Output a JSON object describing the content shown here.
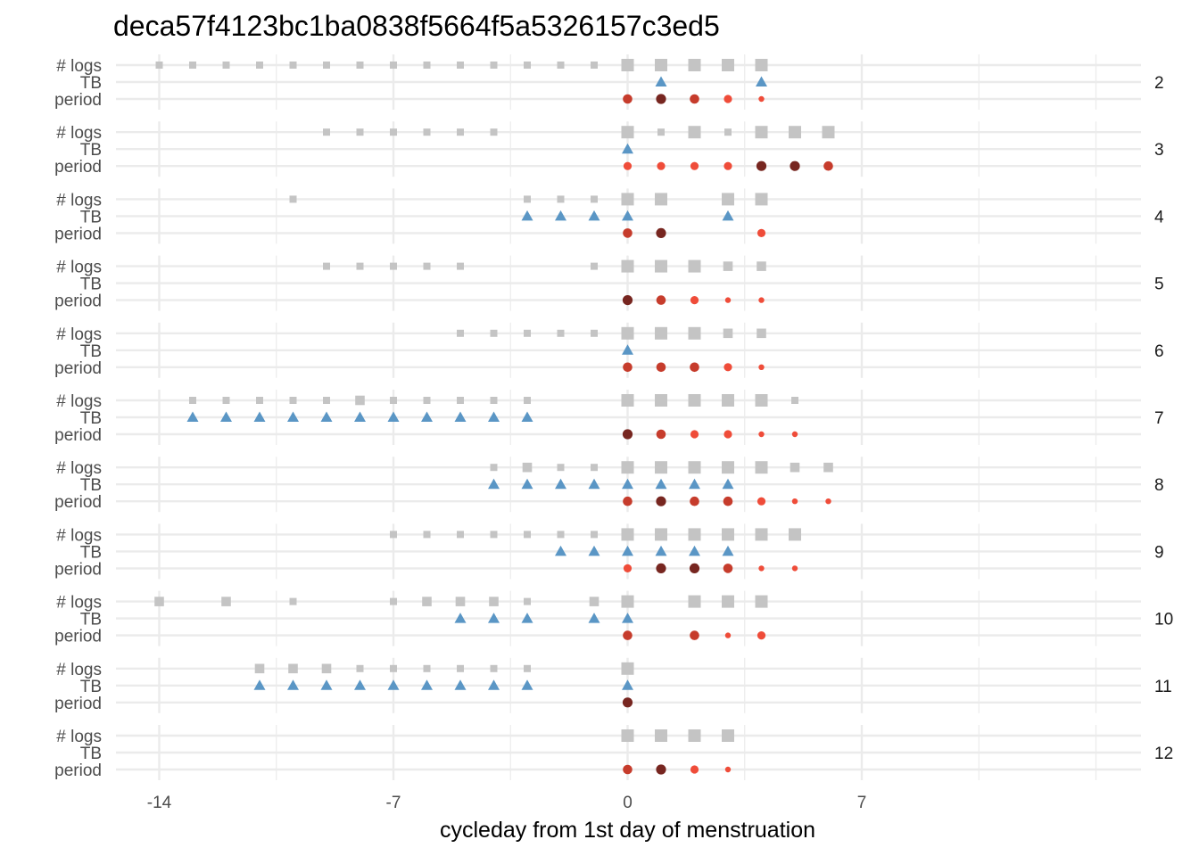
{
  "chart_data": {
    "type": "scatter",
    "title": "deca57f4123bc1ba0838f5664f5a5326157c3ed5",
    "xlabel": "cycleday from 1st day of menstruation",
    "x_ticks": [
      -14,
      -7,
      0,
      7
    ],
    "xlim": [
      -15.3,
      15.3
    ],
    "row_labels": [
      "# logs",
      "TB",
      "period"
    ],
    "grid": true,
    "colors": {
      "logs": "#c4c4c4",
      "tb": "#5a96c5",
      "period_light": "#ef4c39",
      "period_medium": "#c63c2c",
      "period_heavy": "#772620",
      "grid": "#ebebeb"
    },
    "panels": [
      {
        "label": "2",
        "logs": [
          [
            -14,
            1
          ],
          [
            -13,
            1
          ],
          [
            -12,
            1
          ],
          [
            -11,
            1
          ],
          [
            -10,
            1
          ],
          [
            -9,
            1
          ],
          [
            -8,
            1
          ],
          [
            -7,
            1
          ],
          [
            -6,
            1
          ],
          [
            -5,
            1
          ],
          [
            -4,
            1
          ],
          [
            -3,
            1
          ],
          [
            -2,
            1
          ],
          [
            -1,
            1
          ],
          [
            0,
            2
          ],
          [
            1,
            2
          ],
          [
            2,
            2
          ],
          [
            3,
            2
          ],
          [
            4,
            2
          ]
        ],
        "tb": [
          1,
          4
        ],
        "period": [
          [
            0,
            "medium"
          ],
          [
            1,
            "heavy"
          ],
          [
            2,
            "medium"
          ],
          [
            3,
            "light"
          ],
          [
            4,
            "spotting"
          ]
        ]
      },
      {
        "label": "3",
        "logs": [
          [
            -9,
            1
          ],
          [
            -8,
            1
          ],
          [
            -7,
            1
          ],
          [
            -6,
            1
          ],
          [
            -5,
            1
          ],
          [
            -4,
            1
          ],
          [
            0,
            2
          ],
          [
            1,
            1
          ],
          [
            2,
            2
          ],
          [
            3,
            1
          ],
          [
            4,
            2
          ],
          [
            5,
            2
          ],
          [
            6,
            2
          ]
        ],
        "tb": [
          0
        ],
        "period": [
          [
            0,
            "light"
          ],
          [
            1,
            "light"
          ],
          [
            2,
            "light"
          ],
          [
            3,
            "light"
          ],
          [
            4,
            "heavy"
          ],
          [
            5,
            "heavy"
          ],
          [
            6,
            "medium"
          ]
        ]
      },
      {
        "label": "4",
        "logs": [
          [
            -10,
            1
          ],
          [
            -3,
            1
          ],
          [
            -2,
            1
          ],
          [
            -1,
            1
          ],
          [
            0,
            2
          ],
          [
            1,
            2
          ],
          [
            3,
            2
          ],
          [
            4,
            2
          ]
        ],
        "tb": [
          -3,
          -2,
          -1,
          0,
          3
        ],
        "period": [
          [
            0,
            "medium"
          ],
          [
            1,
            "heavy"
          ],
          [
            4,
            "light"
          ]
        ]
      },
      {
        "label": "5",
        "logs": [
          [
            -9,
            1
          ],
          [
            -8,
            1
          ],
          [
            -7,
            1
          ],
          [
            -6,
            1
          ],
          [
            -5,
            1
          ],
          [
            -1,
            1
          ],
          [
            0,
            2
          ],
          [
            1,
            2
          ],
          [
            2,
            2
          ],
          [
            3,
            1.5
          ],
          [
            4,
            1.5
          ]
        ],
        "tb": [],
        "period": [
          [
            0,
            "heavy"
          ],
          [
            1,
            "medium"
          ],
          [
            2,
            "light"
          ],
          [
            3,
            "spotting"
          ],
          [
            4,
            "spotting"
          ]
        ]
      },
      {
        "label": "6",
        "logs": [
          [
            -5,
            1
          ],
          [
            -4,
            1
          ],
          [
            -3,
            1
          ],
          [
            -2,
            1
          ],
          [
            -1,
            1
          ],
          [
            0,
            2
          ],
          [
            1,
            2
          ],
          [
            2,
            2
          ],
          [
            3,
            1.5
          ],
          [
            4,
            1.5
          ]
        ],
        "tb": [
          0
        ],
        "period": [
          [
            0,
            "medium"
          ],
          [
            1,
            "medium"
          ],
          [
            2,
            "medium"
          ],
          [
            3,
            "light"
          ],
          [
            4,
            "spotting"
          ]
        ]
      },
      {
        "label": "7",
        "logs": [
          [
            -13,
            1
          ],
          [
            -12,
            1
          ],
          [
            -11,
            1
          ],
          [
            -10,
            1
          ],
          [
            -9,
            1
          ],
          [
            -8,
            1.5
          ],
          [
            -7,
            1
          ],
          [
            -6,
            1
          ],
          [
            -5,
            1
          ],
          [
            -4,
            1
          ],
          [
            -3,
            1
          ],
          [
            0,
            2
          ],
          [
            1,
            2
          ],
          [
            2,
            2
          ],
          [
            3,
            2
          ],
          [
            4,
            2
          ],
          [
            5,
            1
          ]
        ],
        "tb": [
          -13,
          -12,
          -11,
          -10,
          -9,
          -8,
          -7,
          -6,
          -5,
          -4,
          -3
        ],
        "period": [
          [
            0,
            "heavy"
          ],
          [
            1,
            "medium"
          ],
          [
            2,
            "light"
          ],
          [
            3,
            "light"
          ],
          [
            4,
            "spotting"
          ],
          [
            5,
            "spotting"
          ]
        ]
      },
      {
        "label": "8",
        "logs": [
          [
            -4,
            1
          ],
          [
            -3,
            1.5
          ],
          [
            -2,
            1
          ],
          [
            -1,
            1
          ],
          [
            0,
            2
          ],
          [
            1,
            2
          ],
          [
            2,
            2
          ],
          [
            3,
            2
          ],
          [
            4,
            2
          ],
          [
            5,
            1.5
          ],
          [
            6,
            1.5
          ]
        ],
        "tb": [
          -4,
          -3,
          -2,
          -1,
          0,
          1,
          2,
          3
        ],
        "period": [
          [
            0,
            "medium"
          ],
          [
            1,
            "heavy"
          ],
          [
            2,
            "medium"
          ],
          [
            3,
            "medium"
          ],
          [
            4,
            "light"
          ],
          [
            5,
            "spotting"
          ],
          [
            6,
            "spotting"
          ]
        ]
      },
      {
        "label": "9",
        "logs": [
          [
            -7,
            1
          ],
          [
            -6,
            1
          ],
          [
            -5,
            1
          ],
          [
            -4,
            1
          ],
          [
            -3,
            1
          ],
          [
            -2,
            1
          ],
          [
            -1,
            1
          ],
          [
            0,
            2
          ],
          [
            1,
            2
          ],
          [
            2,
            2
          ],
          [
            3,
            2
          ],
          [
            4,
            2
          ],
          [
            5,
            2
          ]
        ],
        "tb": [
          -2,
          -1,
          0,
          1,
          2,
          3
        ],
        "period": [
          [
            0,
            "light"
          ],
          [
            1,
            "heavy"
          ],
          [
            2,
            "heavy"
          ],
          [
            3,
            "medium"
          ],
          [
            4,
            "spotting"
          ],
          [
            5,
            "spotting"
          ]
        ]
      },
      {
        "label": "10",
        "logs": [
          [
            -14,
            1.5
          ],
          [
            -12,
            1.5
          ],
          [
            -10,
            1
          ],
          [
            -7,
            1
          ],
          [
            -6,
            1.5
          ],
          [
            -5,
            1.5
          ],
          [
            -4,
            1.5
          ],
          [
            -3,
            1
          ],
          [
            -1,
            1.5
          ],
          [
            0,
            2
          ],
          [
            2,
            2
          ],
          [
            3,
            2
          ],
          [
            4,
            2
          ]
        ],
        "tb": [
          -5,
          -4,
          -3,
          -1,
          0
        ],
        "period": [
          [
            0,
            "medium"
          ],
          [
            2,
            "medium"
          ],
          [
            3,
            "spotting"
          ],
          [
            4,
            "light"
          ]
        ]
      },
      {
        "label": "11",
        "logs": [
          [
            -11,
            1.5
          ],
          [
            -10,
            1.5
          ],
          [
            -9,
            1.5
          ],
          [
            -8,
            1
          ],
          [
            -7,
            1
          ],
          [
            -6,
            1
          ],
          [
            -5,
            1
          ],
          [
            -4,
            1
          ],
          [
            -3,
            1
          ],
          [
            0,
            2
          ]
        ],
        "tb": [
          -11,
          -10,
          -9,
          -8,
          -7,
          -6,
          -5,
          -4,
          -3,
          0
        ],
        "period": [
          [
            0,
            "heavy"
          ]
        ]
      },
      {
        "label": "12",
        "logs": [
          [
            0,
            2
          ],
          [
            1,
            2
          ],
          [
            2,
            2
          ],
          [
            3,
            2
          ]
        ],
        "tb": [],
        "period": [
          [
            0,
            "medium"
          ],
          [
            1,
            "heavy"
          ],
          [
            2,
            "light"
          ],
          [
            3,
            "spotting"
          ]
        ]
      }
    ]
  }
}
